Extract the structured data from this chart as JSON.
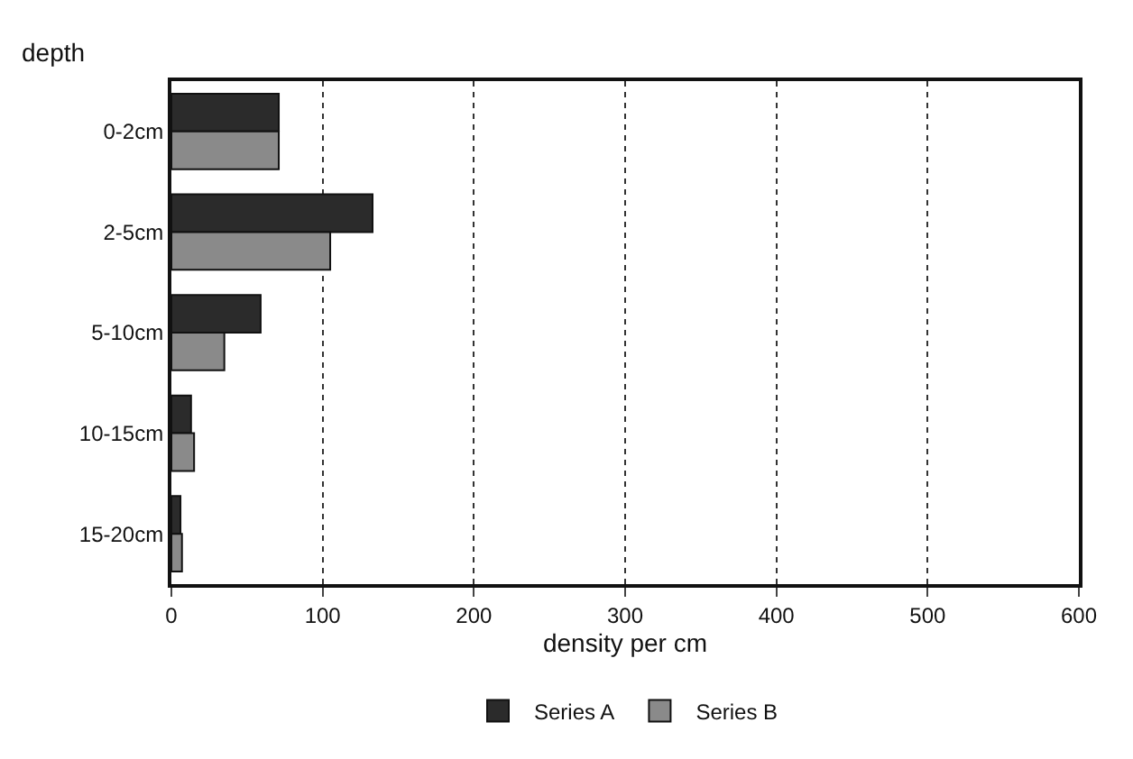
{
  "chart_data": {
    "type": "bar",
    "orientation": "horizontal",
    "ylabel": "depth",
    "xlabel": "density per cm",
    "categories": [
      "0-2cm",
      "2-5cm",
      "5-10cm",
      "10-15cm",
      "15-20cm"
    ],
    "series": [
      {
        "name": "Series A",
        "color": "#2b2b2b",
        "values": [
          71,
          133,
          59,
          13,
          6
        ]
      },
      {
        "name": "Series B",
        "color": "#8a8a8a",
        "values": [
          71,
          105,
          35,
          15,
          7
        ]
      }
    ],
    "xlim": [
      0,
      600
    ],
    "xticks": [
      0,
      100,
      200,
      300,
      400,
      500,
      600
    ],
    "grid": "x",
    "legend": "bottom"
  }
}
